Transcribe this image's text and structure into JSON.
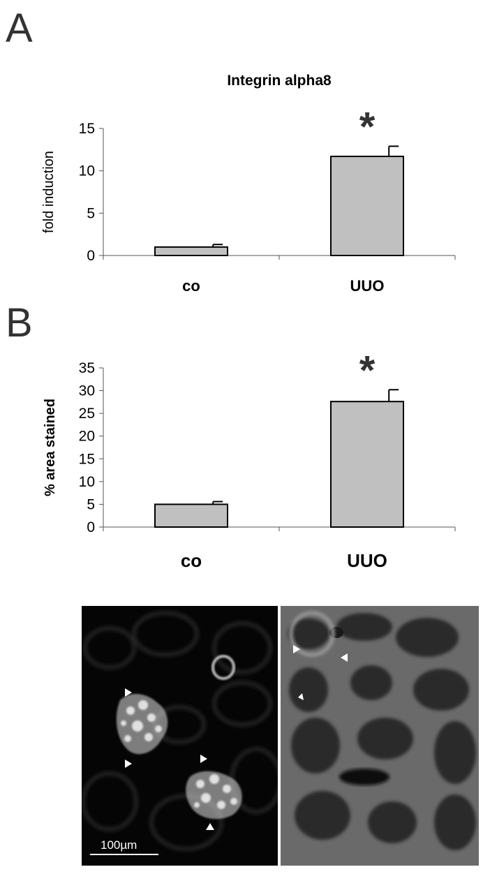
{
  "panels": {
    "a_label": "A",
    "b_label": "B"
  },
  "chart_data": [
    {
      "type": "bar",
      "title": "Integrin alpha8",
      "ylabel": "fold induction",
      "xlabel": "",
      "categories": [
        "co",
        "UUO"
      ],
      "values": [
        1,
        11.7
      ],
      "errors": [
        0.3,
        1.2
      ],
      "yticks": [
        "0",
        "5",
        "10",
        "15"
      ],
      "ylim": [
        0,
        15
      ],
      "significance": [
        "",
        "*"
      ],
      "bar_color": "#c0c0c0",
      "grid": false
    },
    {
      "type": "bar",
      "title": "",
      "ylabel": "% area stained",
      "xlabel": "",
      "categories": [
        "co",
        "UUO"
      ],
      "values": [
        5,
        27.6
      ],
      "errors": [
        0.6,
        2.6
      ],
      "yticks": [
        "0",
        "5",
        "10",
        "15",
        "20",
        "25",
        "30",
        "35"
      ],
      "ylim": [
        0,
        35
      ],
      "significance": [
        "",
        "*"
      ],
      "bar_color": "#c0c0c0",
      "grid": false
    }
  ],
  "micrographs": {
    "scale_label": "100µm"
  }
}
